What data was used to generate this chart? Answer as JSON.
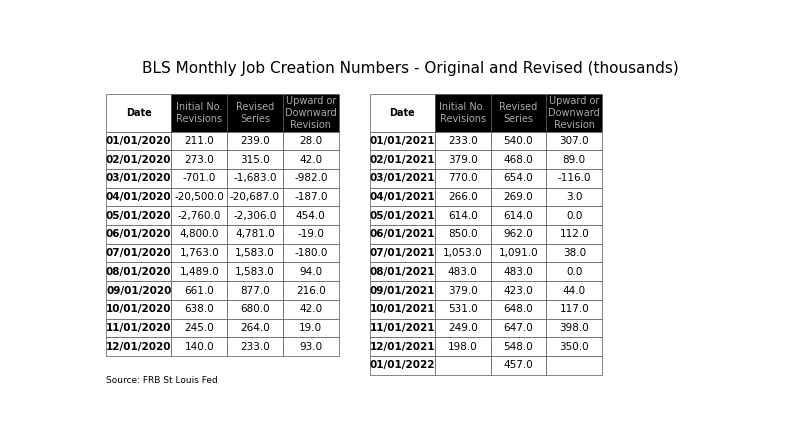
{
  "title": "BLS Monthly Job Creation Numbers - Original and Revised (thousands)",
  "source": "Source: FRB St Louis Fed",
  "left_table": {
    "headers": [
      "Date",
      "Initial No.\nRevisions",
      "Revised\nSeries",
      "Upward or\nDownward\nRevision"
    ],
    "rows": [
      [
        "01/01/2020",
        "211.0",
        "239.0",
        "28.0"
      ],
      [
        "02/01/2020",
        "273.0",
        "315.0",
        "42.0"
      ],
      [
        "03/01/2020",
        "-701.0",
        "-1,683.0",
        "-982.0"
      ],
      [
        "04/01/2020",
        "-20,500.0",
        "-20,687.0",
        "-187.0"
      ],
      [
        "05/01/2020",
        "-2,760.0",
        "-2,306.0",
        "454.0"
      ],
      [
        "06/01/2020",
        "4,800.0",
        "4,781.0",
        "-19.0"
      ],
      [
        "07/01/2020",
        "1,763.0",
        "1,583.0",
        "-180.0"
      ],
      [
        "08/01/2020",
        "1,489.0",
        "1,583.0",
        "94.0"
      ],
      [
        "09/01/2020",
        "661.0",
        "877.0",
        "216.0"
      ],
      [
        "10/01/2020",
        "638.0",
        "680.0",
        "42.0"
      ],
      [
        "11/01/2020",
        "245.0",
        "264.0",
        "19.0"
      ],
      [
        "12/01/2020",
        "140.0",
        "233.0",
        "93.0"
      ]
    ]
  },
  "right_table": {
    "headers": [
      "Date",
      "Initial No.\nRevisions",
      "Revised\nSeries",
      "Upward or\nDownward\nRevision"
    ],
    "rows": [
      [
        "01/01/2021",
        "233.0",
        "540.0",
        "307.0"
      ],
      [
        "02/01/2021",
        "379.0",
        "468.0",
        "89.0"
      ],
      [
        "03/01/2021",
        "770.0",
        "654.0",
        "-116.0"
      ],
      [
        "04/01/2021",
        "266.0",
        "269.0",
        "3.0"
      ],
      [
        "05/01/2021",
        "614.0",
        "614.0",
        "0.0"
      ],
      [
        "06/01/2021",
        "850.0",
        "962.0",
        "112.0"
      ],
      [
        "07/01/2021",
        "1,053.0",
        "1,091.0",
        "38.0"
      ],
      [
        "08/01/2021",
        "483.0",
        "483.0",
        "0.0"
      ],
      [
        "09/01/2021",
        "379.0",
        "423.0",
        "44.0"
      ],
      [
        "10/01/2021",
        "531.0",
        "648.0",
        "117.0"
      ],
      [
        "11/01/2021",
        "249.0",
        "647.0",
        "398.0"
      ],
      [
        "12/01/2021",
        "198.0",
        "548.0",
        "350.0"
      ],
      [
        "01/01/2022",
        "",
        "457.0",
        ""
      ]
    ]
  },
  "bg_color": "#ffffff",
  "header_bg": "#000000",
  "header_text": "#aaaaaa",
  "date_header_bg": "#ffffff",
  "date_header_text": "#000000",
  "cell_bg": "#ffffff",
  "cell_text": "#000000",
  "title_fontsize": 11,
  "cell_fontsize": 7.5,
  "header_fontsize": 7.0
}
